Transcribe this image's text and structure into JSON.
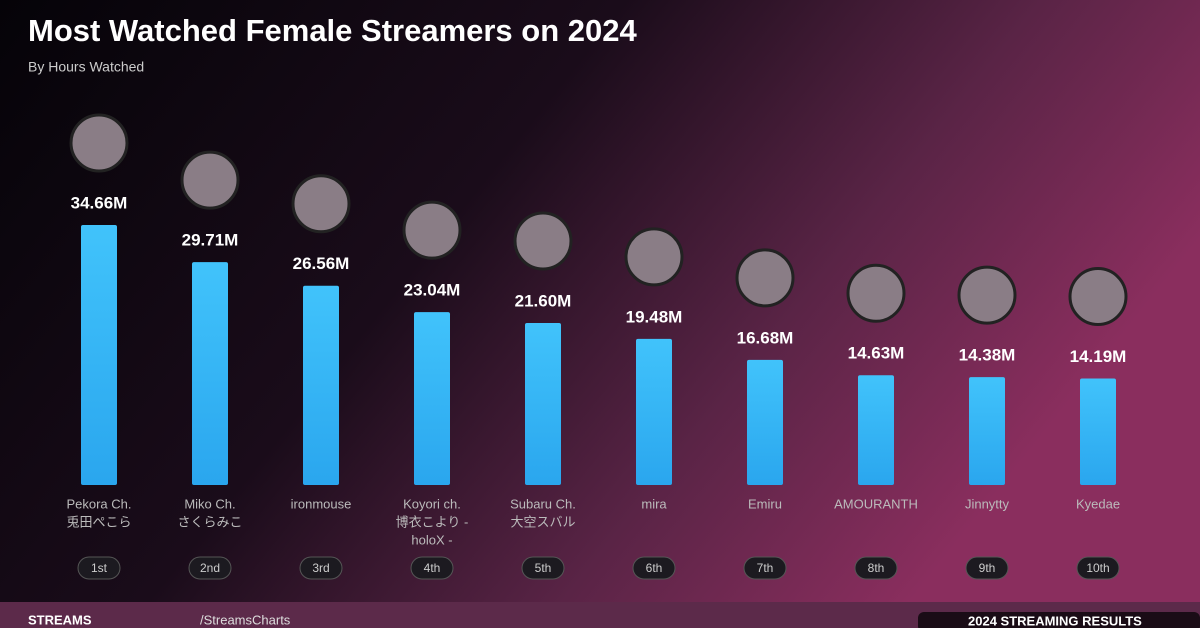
{
  "chart_data": {
    "type": "bar",
    "title": "Most Watched Female Streamers on 2024",
    "subtitle": "By Hours Watched",
    "categories": [
      [
        "Pekora Ch.",
        "兎田ぺこら"
      ],
      [
        "Miko Ch.",
        "さくらみこ"
      ],
      [
        "ironmouse"
      ],
      [
        "Koyori ch.",
        "博衣こより -",
        "holoX -"
      ],
      [
        "Subaru Ch.",
        "大空スバル"
      ],
      [
        "mira"
      ],
      [
        "Emiru"
      ],
      [
        "AMOURANTH"
      ],
      [
        "Jinnytty"
      ],
      [
        "Kyedae"
      ]
    ],
    "values": [
      34.66,
      29.71,
      26.56,
      23.04,
      21.6,
      19.48,
      16.68,
      14.63,
      14.38,
      14.19
    ],
    "value_labels": [
      "34.66M",
      "29.71M",
      "26.56M",
      "23.04M",
      "21.60M",
      "19.48M",
      "16.68M",
      "14.63M",
      "14.38M",
      "14.19M"
    ],
    "ranks": [
      "1st",
      "2nd",
      "3rd",
      "4th",
      "5th",
      "6th",
      "7th",
      "8th",
      "9th",
      "10th"
    ],
    "color": "#35b6f4"
  },
  "footer": {
    "brand": "STREAMS",
    "handle": "/StreamsCharts",
    "badge": "2024 STREAMING RESULTS"
  }
}
